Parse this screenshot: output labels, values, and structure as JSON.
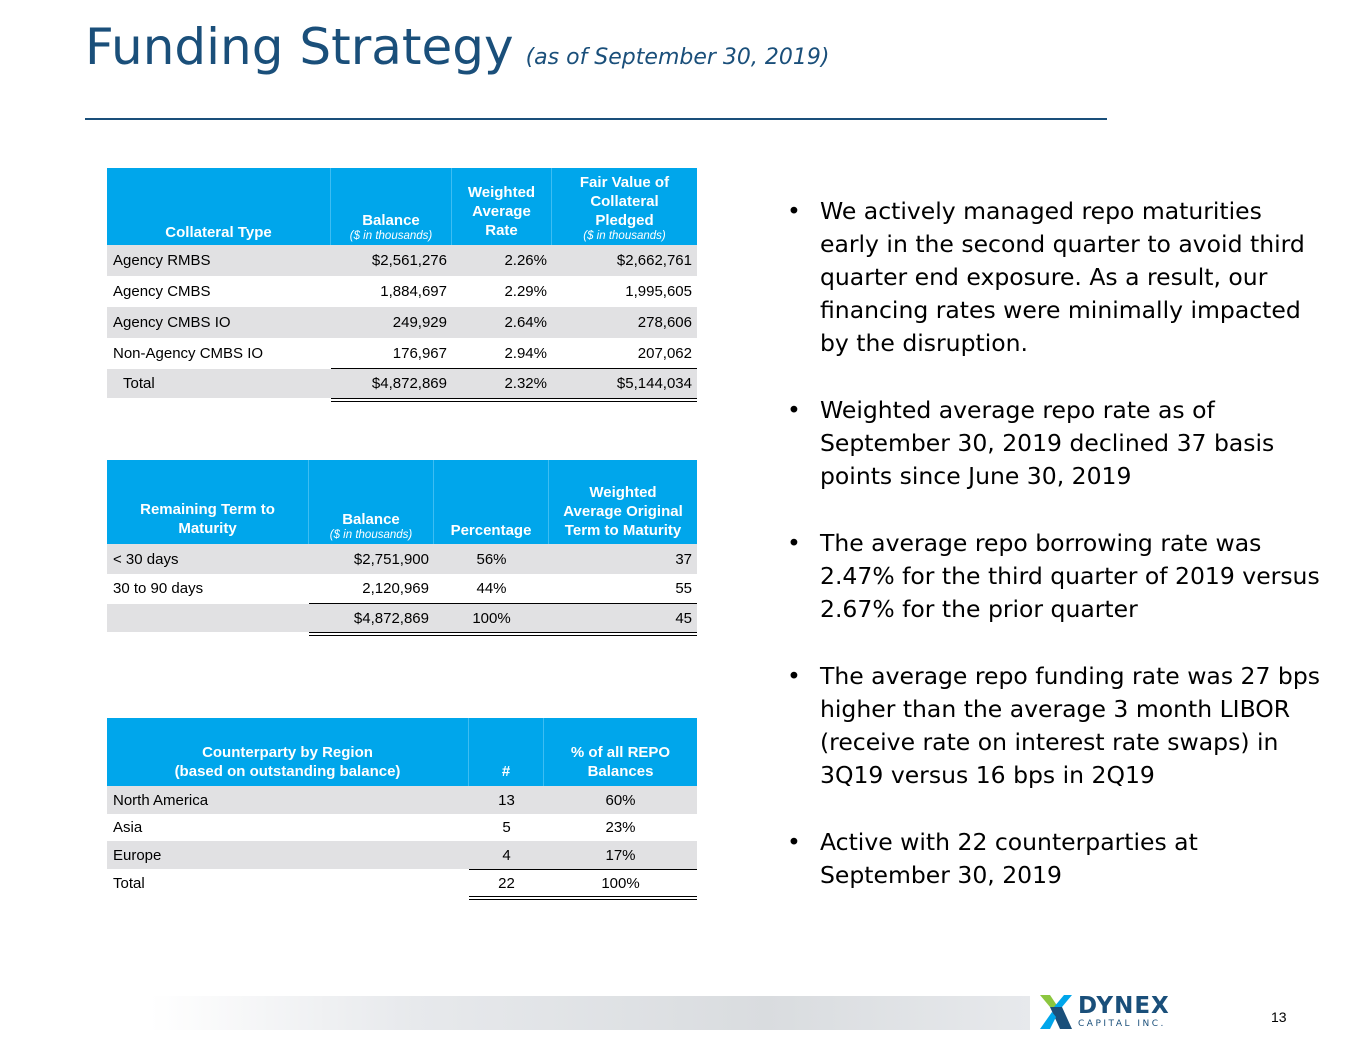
{
  "title": {
    "main": "Funding Strategy",
    "sub": "(as of September 30, 2019)"
  },
  "table1": {
    "headers": [
      {
        "lines": [
          "Collateral Type"
        ],
        "note": ""
      },
      {
        "lines": [
          "Balance"
        ],
        "note": "($ in thousands)"
      },
      {
        "lines": [
          "Weighted",
          "Average",
          "Rate"
        ],
        "note": ""
      },
      {
        "lines": [
          "Fair Value of",
          "Collateral",
          "Pledged"
        ],
        "note": "($ in thousands)"
      }
    ],
    "rows": [
      [
        "Agency RMBS",
        "$2,561,276",
        "2.26%",
        "$2,662,761"
      ],
      [
        "Agency CMBS",
        "1,884,697",
        "2.29%",
        "1,995,605"
      ],
      [
        "Agency CMBS IO",
        "249,929",
        "2.64%",
        "278,606"
      ],
      [
        "Non-Agency CMBS IO",
        "176,967",
        "2.94%",
        "207,062"
      ]
    ],
    "total": [
      "Total",
      "$4,872,869",
      "2.32%",
      "$5,144,034"
    ]
  },
  "table2": {
    "headers": [
      {
        "lines": [
          "Remaining Term to",
          "Maturity"
        ],
        "note": ""
      },
      {
        "lines": [
          "Balance"
        ],
        "note": "($ in thousands)"
      },
      {
        "lines": [
          "Percentage"
        ],
        "note": ""
      },
      {
        "lines": [
          "Weighted",
          "Average Original",
          "Term to Maturity"
        ],
        "note": ""
      }
    ],
    "rows": [
      [
        "< 30 days",
        "$2,751,900",
        "56%",
        "37"
      ],
      [
        "30 to 90 days",
        "2,120,969",
        "44%",
        "55"
      ]
    ],
    "total": [
      "",
      "$4,872,869",
      "100%",
      "45"
    ]
  },
  "table3": {
    "headers": [
      {
        "lines": [
          "Counterparty by Region",
          "(based on outstanding balance)"
        ],
        "note": ""
      },
      {
        "lines": [
          "#"
        ],
        "note": ""
      },
      {
        "lines": [
          "% of all REPO",
          "Balances"
        ],
        "note": ""
      }
    ],
    "rows": [
      [
        "North America",
        "13",
        "60%"
      ],
      [
        "Asia",
        "5",
        "23%"
      ],
      [
        "Europe",
        "4",
        "17%"
      ]
    ],
    "total": [
      "Total",
      "22",
      "100%"
    ]
  },
  "bullets": [
    "We actively managed repo maturities early in the second quarter to avoid third quarter end exposure. As a result, our financing rates were minimally impacted by the disruption.",
    "Weighted average repo rate as of September 30, 2019 declined 37 basis points since June 30, 2019",
    "The average repo borrowing rate was 2.47% for the third quarter of 2019 versus 2.67% for the prior quarter",
    "The average repo funding rate was 27 bps higher than the average 3 month LIBOR (receive rate on interest rate swaps) in 3Q19 versus 16 bps in 2Q19",
    "Active with 22 counterparties at September 30, 2019"
  ],
  "bullet_char": "•",
  "logo": {
    "name": "DYNEX",
    "sub": "CAPITAL INC."
  },
  "page_number": "13",
  "colors": {
    "header_blue": "#00a6eb",
    "title_blue": "#1a4f7a",
    "row_gray": "#e1e1e3"
  }
}
